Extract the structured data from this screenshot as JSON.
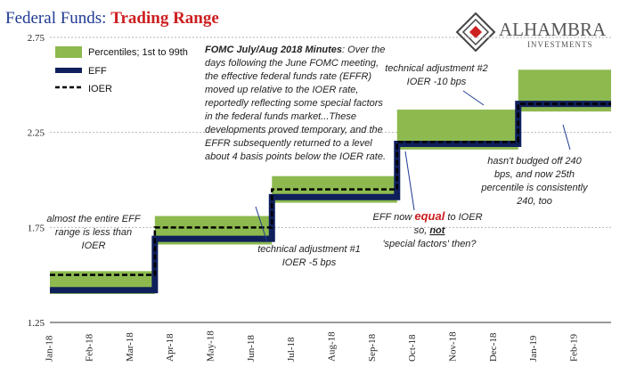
{
  "header": {
    "title_part1": "Federal Funds: ",
    "title_part2": "Trading Range",
    "logo_name": "ALHAMBRA",
    "logo_sub": "INVESTMENTS"
  },
  "chart_data": {
    "type": "line",
    "xlabel": "",
    "ylabel": "",
    "ylim": [
      1.25,
      2.75
    ],
    "yticks": [
      "1.25",
      "1.75",
      "2.25",
      "2.75"
    ],
    "xticks": [
      "Jan-18",
      "Feb-18",
      "Mar-18",
      "Apr-18",
      "May-18",
      "Jun-18",
      "Jul-18",
      "Aug-18",
      "Sep-18",
      "Oct-18",
      "Nov-18",
      "Dec-18",
      "Jan-19",
      "Feb-19"
    ],
    "legend": [
      {
        "name": "Percentiles; 1st to 99th",
        "color": "#8db94f",
        "style": "band"
      },
      {
        "name": "EFF",
        "color": "#0f1f5c",
        "style": "thick-line"
      },
      {
        "name": "IOER",
        "color": "#000000",
        "style": "dashed"
      }
    ],
    "ioer_steps": [
      {
        "from": 0.0,
        "to": 2.6,
        "value": 1.5
      },
      {
        "from": 2.6,
        "to": 5.5,
        "value": 1.75
      },
      {
        "from": 5.5,
        "to": 8.6,
        "value": 1.95
      },
      {
        "from": 8.6,
        "to": 11.6,
        "value": 2.2
      },
      {
        "from": 11.6,
        "to": 13.9,
        "value": 2.4
      }
    ],
    "eff_steps": [
      {
        "from": 0.0,
        "to": 2.6,
        "value": 1.42
      },
      {
        "from": 2.6,
        "to": 5.5,
        "value": 1.69
      },
      {
        "from": 5.5,
        "to": 8.6,
        "value": 1.91
      },
      {
        "from": 8.6,
        "to": 11.6,
        "value": 2.19
      },
      {
        "from": 11.6,
        "to": 13.9,
        "value": 2.4
      }
    ],
    "band_steps": [
      {
        "from": 0.0,
        "to": 2.6,
        "low": 1.4,
        "high": 1.52
      },
      {
        "from": 2.6,
        "to": 5.5,
        "low": 1.66,
        "high": 1.81
      },
      {
        "from": 5.5,
        "to": 8.6,
        "low": 1.88,
        "high": 2.02
      },
      {
        "from": 8.6,
        "to": 11.6,
        "low": 2.16,
        "high": 2.37
      },
      {
        "from": 11.6,
        "to": 13.9,
        "low": 2.36,
        "high": 2.58
      }
    ],
    "annotations": {
      "fomc_title": "FOMC July/Aug 2018 Minutes",
      "fomc_lines": [
        ": Over the",
        "days following the June FOMC meeting,",
        "the effective federal funds rate (EFFR)",
        "moved up relative to the IOER rate,",
        "reportedly reflecting some special factors",
        "in the federal funds market...These",
        "developments proved temporary, and the",
        "EFFR subsequently returned to a level",
        "about 4 basis points below the IOER rate."
      ],
      "adj2_lines": [
        "technical adjustment #2",
        "IOER -10 bps"
      ],
      "budged_lines": [
        "hasn't budged off 240",
        "bps, and now 25th",
        "percentile is consistently",
        "240, too"
      ],
      "eff_equal_pre": "EFF now ",
      "eff_equal_word": "equal",
      "eff_equal_post": " to IOER",
      "so_not_pre": "so, ",
      "so_not_word": "not",
      "special_factors": "'special factors' then?",
      "adj1_lines": [
        "technical adjustment #1",
        "IOER -5 bps"
      ],
      "entire_lines": [
        "almost the entire EFF",
        "range is less than",
        "IOER"
      ]
    }
  }
}
